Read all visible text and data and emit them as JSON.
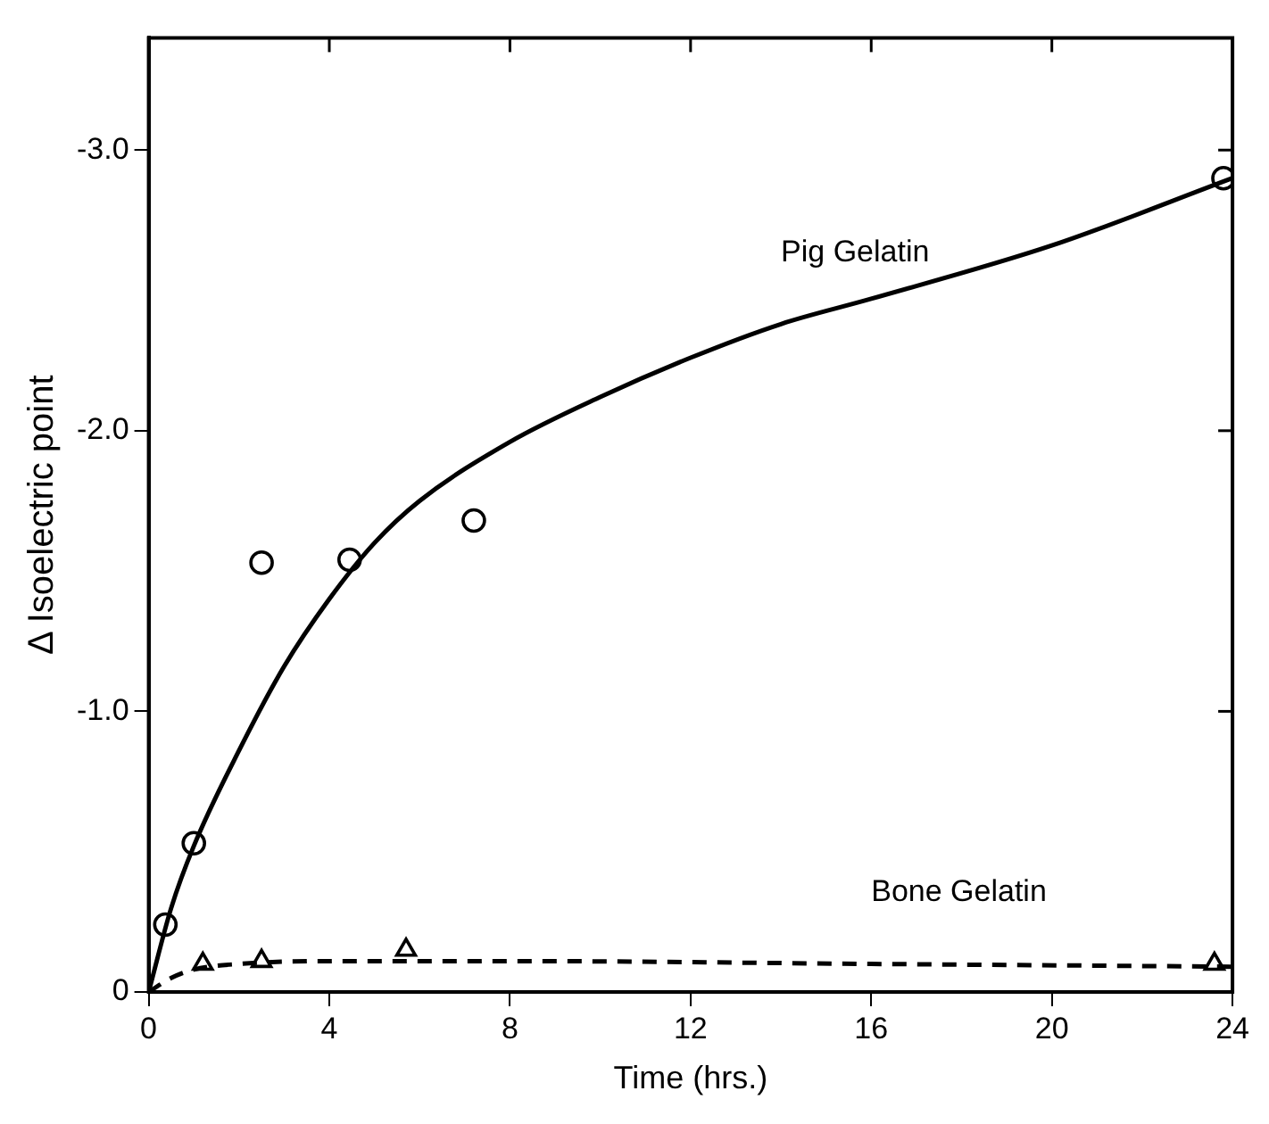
{
  "chart_data": {
    "type": "scatter",
    "xlabel": "Time (hrs.)",
    "ylabel": "Δ Isoelectric point",
    "xlim": [
      0,
      24
    ],
    "xticks": [
      0,
      4,
      8,
      12,
      16,
      20,
      24
    ],
    "ylim": [
      0,
      -3.4
    ],
    "yticks": [
      {
        "value": 0,
        "label": "0"
      },
      {
        "value": -1,
        "label": "-1.0"
      },
      {
        "value": -2,
        "label": "-2.0"
      },
      {
        "value": -3,
        "label": "-3.0"
      }
    ],
    "grid": false,
    "legend": false,
    "series": [
      {
        "type": "scatter",
        "marker": "circle",
        "color": "#000000",
        "x": [
          0.37,
          1.0,
          2.5,
          4.45,
          7.2,
          23.8
        ],
        "values": [
          -0.24,
          -0.53,
          -1.53,
          -1.54,
          -1.68,
          -2.9
        ]
      },
      {
        "type": "scatter",
        "marker": "triangle",
        "color": "#000000",
        "x": [
          1.2,
          2.5,
          5.7,
          23.6
        ],
        "values": [
          -0.1,
          -0.11,
          -0.15,
          -0.1
        ]
      },
      {
        "type": "line",
        "name": "Pig Gelatin",
        "marker": "none",
        "line_style": "solid",
        "color": "#000000",
        "x": [
          0,
          0.5,
          1,
          2,
          3,
          4,
          5,
          6,
          8,
          10,
          12,
          14,
          16,
          20,
          24
        ],
        "values": [
          0,
          -0.3,
          -0.52,
          -0.86,
          -1.16,
          -1.4,
          -1.6,
          -1.75,
          -1.96,
          -2.12,
          -2.26,
          -2.38,
          -2.47,
          -2.66,
          -2.9
        ]
      },
      {
        "type": "line",
        "name": "Bone Gelatin",
        "marker": "none",
        "line_style": "dashed",
        "color": "#000000",
        "x": [
          0,
          0.5,
          1,
          2,
          4,
          8,
          16,
          24
        ],
        "values": [
          0,
          -0.05,
          -0.08,
          -0.1,
          -0.11,
          -0.11,
          -0.1,
          -0.09
        ]
      }
    ]
  }
}
